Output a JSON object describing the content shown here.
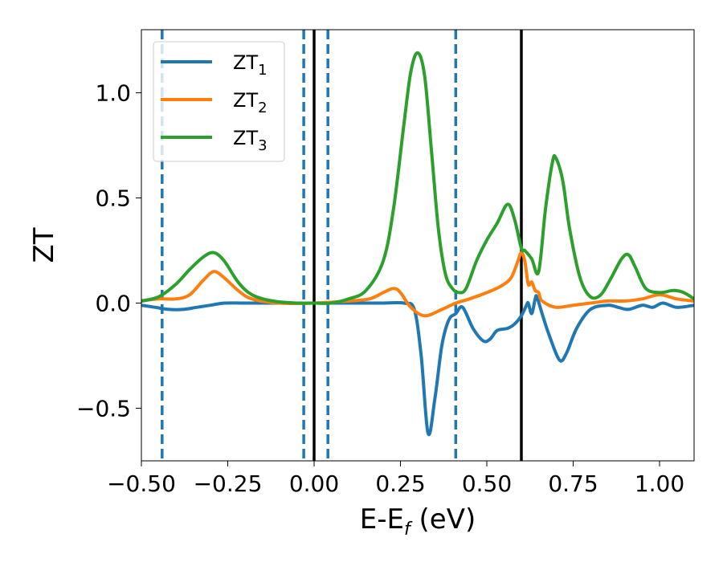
{
  "chart_data": {
    "type": "line",
    "xlabel": "E-E_f (eV)",
    "xlabel_main": "E-E",
    "xlabel_sub": "f",
    "xlabel_unit": " (eV)",
    "ylabel": "ZT",
    "xlim": [
      -0.5,
      1.1
    ],
    "ylim": [
      -0.75,
      1.3
    ],
    "xticks": [
      -0.5,
      -0.25,
      0.0,
      0.25,
      0.5,
      0.75,
      1.0
    ],
    "xtick_labels": [
      "−0.50",
      "−0.25",
      "0.00",
      "0.25",
      "0.50",
      "0.75",
      "1.00"
    ],
    "yticks": [
      -0.5,
      0.0,
      0.5,
      1.0
    ],
    "ytick_labels": [
      "−0.5",
      "0.0",
      "0.5",
      "1.0"
    ],
    "grid": false,
    "legend_position": "top-left",
    "vlines_solid": [
      0.0,
      0.6
    ],
    "vlines_dashed": [
      -0.44,
      -0.03,
      0.04,
      0.41
    ],
    "vline_solid_color": "#000000",
    "vline_dashed_color": "#1f77b4",
    "series": [
      {
        "name": "ZT_1",
        "label_main": "ZT",
        "label_sub": "1",
        "color": "#1f77b4",
        "x": [
          -0.5,
          -0.46,
          -0.42,
          -0.38,
          -0.34,
          -0.3,
          -0.26,
          -0.2,
          -0.1,
          0.0,
          0.1,
          0.2,
          0.26,
          0.29,
          0.31,
          0.33,
          0.35,
          0.37,
          0.39,
          0.41,
          0.43,
          0.46,
          0.49,
          0.51,
          0.53,
          0.56,
          0.58,
          0.6,
          0.615,
          0.62,
          0.63,
          0.64,
          0.645,
          0.66,
          0.68,
          0.71,
          0.73,
          0.76,
          0.8,
          0.85,
          0.88,
          0.91,
          0.95,
          0.98,
          1.01,
          1.05,
          1.1
        ],
        "y": [
          -0.01,
          -0.02,
          -0.03,
          -0.03,
          -0.02,
          -0.01,
          0.0,
          0.0,
          0.0,
          0.0,
          0.0,
          0.0,
          0.0,
          -0.03,
          -0.25,
          -0.62,
          -0.45,
          -0.2,
          -0.08,
          -0.05,
          -0.02,
          -0.12,
          -0.18,
          -0.17,
          -0.13,
          -0.12,
          -0.1,
          -0.06,
          -0.01,
          0.0,
          -0.05,
          0.02,
          0.03,
          -0.05,
          -0.15,
          -0.27,
          -0.24,
          -0.12,
          -0.03,
          -0.01,
          -0.02,
          -0.03,
          -0.01,
          -0.02,
          0.0,
          -0.02,
          -0.01
        ]
      },
      {
        "name": "ZT_2",
        "label_main": "ZT",
        "label_sub": "2",
        "color": "#ff7f0e",
        "x": [
          -0.5,
          -0.45,
          -0.4,
          -0.36,
          -0.32,
          -0.29,
          -0.26,
          -0.22,
          -0.18,
          -0.1,
          0.0,
          0.1,
          0.16,
          0.2,
          0.23,
          0.25,
          0.28,
          0.32,
          0.37,
          0.41,
          0.45,
          0.5,
          0.54,
          0.57,
          0.59,
          0.6,
          0.61,
          0.62,
          0.63,
          0.64,
          0.65,
          0.66,
          0.7,
          0.75,
          0.8,
          0.85,
          0.9,
          0.95,
          1.0,
          1.05,
          1.1
        ],
        "y": [
          0.01,
          0.02,
          0.02,
          0.04,
          0.11,
          0.15,
          0.12,
          0.06,
          0.02,
          0.0,
          0.0,
          0.01,
          0.02,
          0.05,
          0.07,
          0.05,
          -0.02,
          -0.06,
          -0.03,
          0.0,
          0.02,
          0.05,
          0.08,
          0.12,
          0.2,
          0.24,
          0.2,
          0.09,
          0.1,
          0.06,
          0.05,
          0.01,
          -0.02,
          -0.01,
          0.0,
          0.01,
          0.01,
          0.02,
          0.04,
          0.02,
          0.01
        ]
      },
      {
        "name": "ZT_3",
        "label_main": "ZT",
        "label_sub": "3",
        "color": "#2ca02c",
        "x": [
          -0.5,
          -0.45,
          -0.4,
          -0.36,
          -0.32,
          -0.29,
          -0.26,
          -0.22,
          -0.18,
          -0.12,
          -0.05,
          0.0,
          0.05,
          0.1,
          0.15,
          0.2,
          0.23,
          0.26,
          0.28,
          0.3,
          0.32,
          0.34,
          0.36,
          0.38,
          0.4,
          0.42,
          0.44,
          0.47,
          0.5,
          0.53,
          0.56,
          0.58,
          0.6,
          0.61,
          0.63,
          0.65,
          0.67,
          0.69,
          0.7,
          0.72,
          0.74,
          0.77,
          0.8,
          0.83,
          0.86,
          0.89,
          0.91,
          0.93,
          0.96,
          1.0,
          1.04,
          1.07,
          1.1
        ],
        "y": [
          0.01,
          0.03,
          0.09,
          0.16,
          0.22,
          0.24,
          0.2,
          0.1,
          0.04,
          0.01,
          0.0,
          0.0,
          0.0,
          0.02,
          0.06,
          0.2,
          0.45,
          0.85,
          1.1,
          1.19,
          1.08,
          0.72,
          0.35,
          0.14,
          0.07,
          0.05,
          0.07,
          0.2,
          0.3,
          0.38,
          0.47,
          0.4,
          0.26,
          0.25,
          0.21,
          0.15,
          0.45,
          0.67,
          0.69,
          0.58,
          0.35,
          0.12,
          0.03,
          0.04,
          0.12,
          0.21,
          0.23,
          0.17,
          0.07,
          0.05,
          0.06,
          0.05,
          0.02
        ]
      }
    ]
  }
}
